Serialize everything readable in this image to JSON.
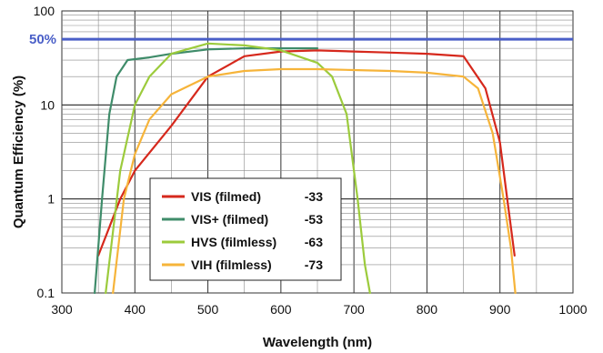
{
  "chart_data": {
    "type": "line",
    "title": "",
    "xlabel": "Wavelength (nm)",
    "ylabel": "Quantum Efficiency (%)",
    "xlim": [
      300,
      1000
    ],
    "ylim": [
      0.1,
      100
    ],
    "y_scale": "log",
    "grid": true,
    "x_ticks": [
      "300",
      "400",
      "500",
      "600",
      "700",
      "800",
      "900",
      "1000"
    ],
    "y_ticks": [
      "0.1",
      "1",
      "10",
      "100"
    ],
    "reference_line": {
      "label": "50%",
      "y": 50,
      "color": "#4a5fc8"
    },
    "legend_position": "lower-left",
    "series": [
      {
        "name": "VIS (filmed)",
        "code": "-33",
        "color": "#d6281c",
        "x": [
          350,
          365,
          380,
          400,
          450,
          500,
          550,
          600,
          650,
          700,
          750,
          800,
          850,
          880,
          900,
          910,
          920
        ],
        "y": [
          0.25,
          0.5,
          1.0,
          2.0,
          6.0,
          20,
          33,
          37,
          38,
          37,
          36,
          35,
          33,
          15,
          4,
          1.0,
          0.25
        ]
      },
      {
        "name": "VIS+ (filmed)",
        "code": "-53",
        "color": "#3f8c6a",
        "x": [
          345,
          355,
          365,
          375,
          390,
          420,
          450,
          500,
          550,
          600,
          650
        ],
        "y": [
          0.1,
          1.0,
          8.0,
          20,
          30,
          32,
          35,
          39,
          40,
          40,
          40
        ]
      },
      {
        "name": "HVS (filmless)",
        "code": "-63",
        "color": "#9ccb3c",
        "x": [
          360,
          380,
          400,
          420,
          450,
          500,
          550,
          600,
          650,
          670,
          690,
          705,
          715,
          722
        ],
        "y": [
          0.1,
          2.0,
          10,
          20,
          35,
          45,
          43,
          38,
          28,
          20,
          8,
          1.0,
          0.2,
          0.1
        ]
      },
      {
        "name": "VIH (filmless)",
        "code": "-73",
        "color": "#f6b43a",
        "x": [
          370,
          385,
          400,
          420,
          450,
          500,
          550,
          600,
          650,
          700,
          750,
          800,
          850,
          870,
          890,
          905,
          915,
          921
        ],
        "y": [
          0.1,
          1.0,
          3.0,
          7.0,
          13,
          20,
          23,
          24,
          24,
          23.5,
          23,
          22,
          20,
          15,
          5,
          1.0,
          0.3,
          0.1
        ]
      }
    ]
  }
}
